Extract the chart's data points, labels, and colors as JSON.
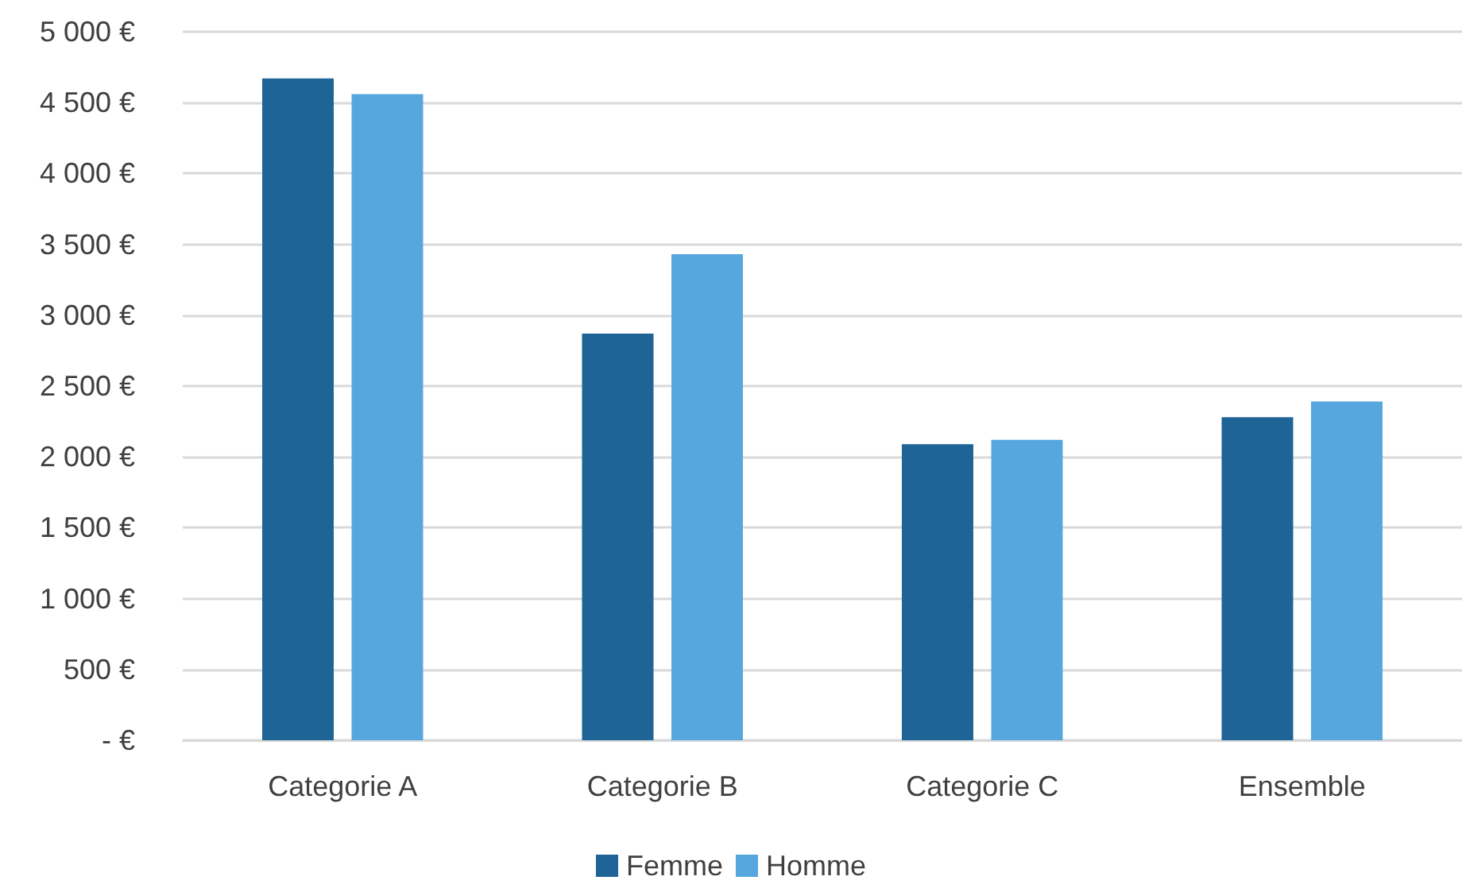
{
  "chart_data": {
    "type": "bar",
    "categories": [
      "Categorie A",
      "Categorie B",
      "Categorie C",
      "Ensemble"
    ],
    "series": [
      {
        "name": "Femme",
        "color": "#1f6496",
        "values": [
          4670,
          2870,
          2090,
          2280
        ]
      },
      {
        "name": "Homme",
        "color": "#57a7df",
        "values": [
          4560,
          3430,
          2120,
          2390
        ]
      }
    ],
    "ylim": [
      0,
      5000
    ],
    "yticks": [
      {
        "value": 0,
        "label": "- €"
      },
      {
        "value": 500,
        "label": "500 €"
      },
      {
        "value": 1000,
        "label": "1 000 €"
      },
      {
        "value": 1500,
        "label": "1 500 €"
      },
      {
        "value": 2000,
        "label": "2 000 €"
      },
      {
        "value": 2500,
        "label": "2 500 €"
      },
      {
        "value": 3000,
        "label": "3 000 €"
      },
      {
        "value": 3500,
        "label": "3 500 €"
      },
      {
        "value": 4000,
        "label": "4 000 €"
      },
      {
        "value": 4500,
        "label": "4 500 €"
      },
      {
        "value": 5000,
        "label": "5 000 €"
      }
    ],
    "grid": "y",
    "legend": "bottom"
  }
}
